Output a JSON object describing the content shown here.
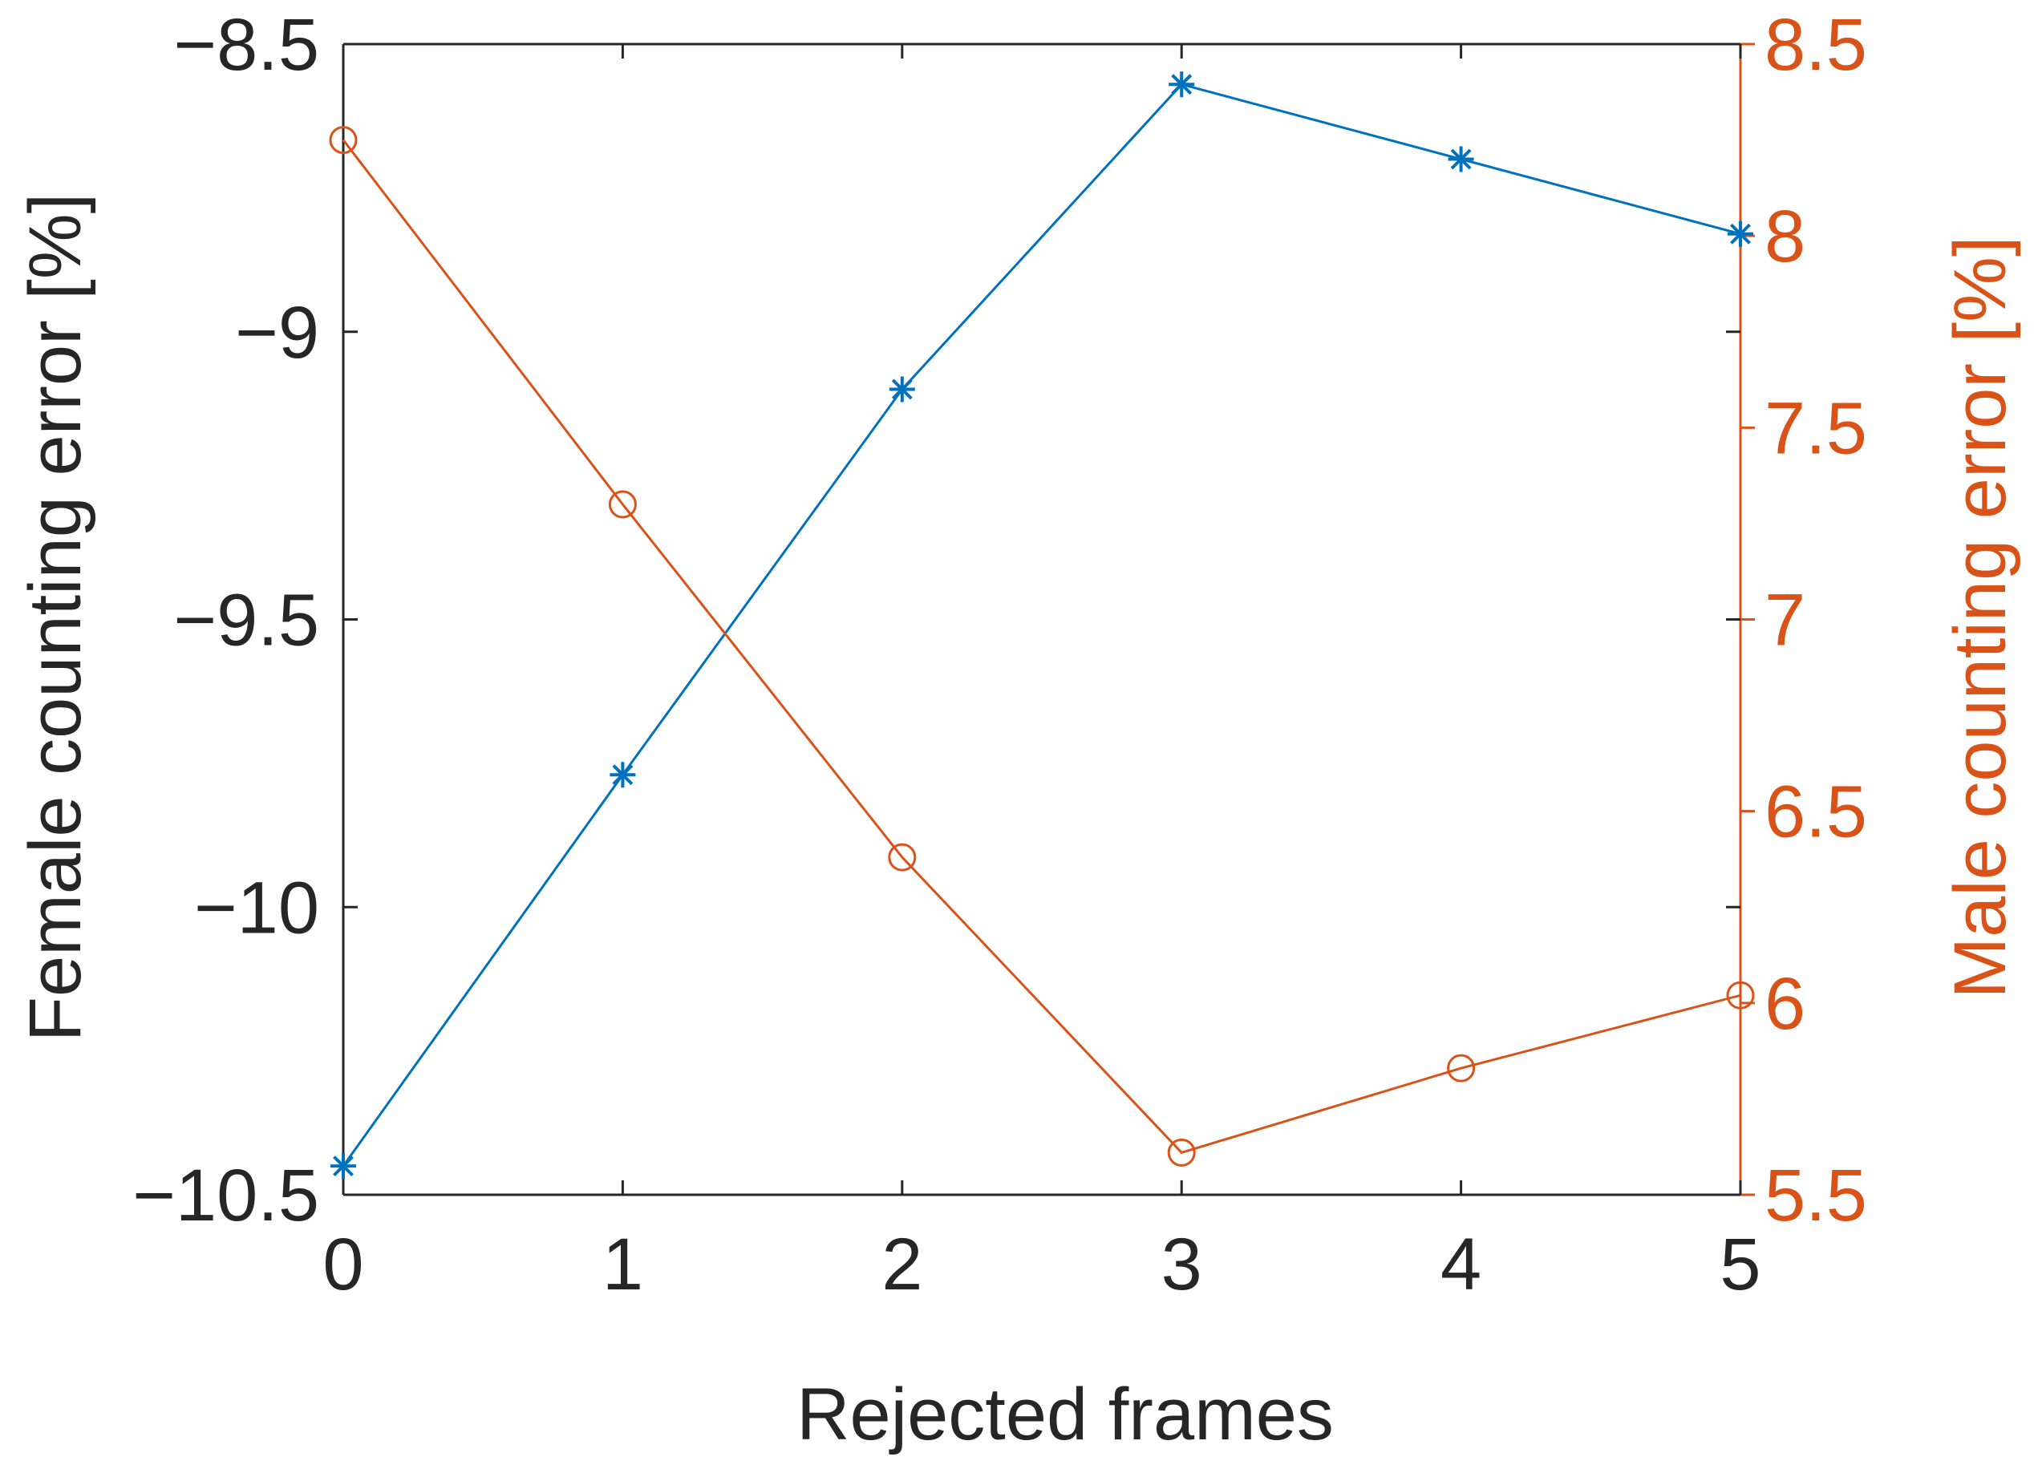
{
  "colors": {
    "female_series": "#0072BD",
    "male_series": "#D95319",
    "axis_left": "#262626",
    "axis_right": "#D95319",
    "background": "#ffffff"
  },
  "chart_data": {
    "type": "line",
    "title": "",
    "xlabel": "Rejected frames",
    "ylabel_left": "Female counting error [%]",
    "ylabel_right": "Male counting error [%]",
    "x": [
      0,
      1,
      2,
      3,
      4,
      5
    ],
    "xlim": [
      0,
      5
    ],
    "xticks": [
      "0",
      "1",
      "2",
      "3",
      "4",
      "5"
    ],
    "ylim_left": [
      -10.5,
      -8.5
    ],
    "yticks_left": [
      "−10.5",
      "−10",
      "−9.5",
      "−9",
      "−8.5"
    ],
    "ylim_right": [
      5.5,
      8.5
    ],
    "yticks_right": [
      "5.5",
      "6",
      "6.5",
      "7",
      "7.5",
      "8",
      "8.5"
    ],
    "grid": false,
    "legend": "none",
    "series": [
      {
        "axis": "left",
        "marker": "asterisk",
        "color": "#0072BD",
        "values": [
          -10.45,
          -9.77,
          -9.1,
          -8.57,
          -8.7,
          -8.83
        ]
      },
      {
        "axis": "right",
        "marker": "circle",
        "color": "#D95319",
        "values": [
          8.25,
          7.3,
          6.38,
          5.61,
          5.83,
          6.02
        ]
      }
    ]
  }
}
